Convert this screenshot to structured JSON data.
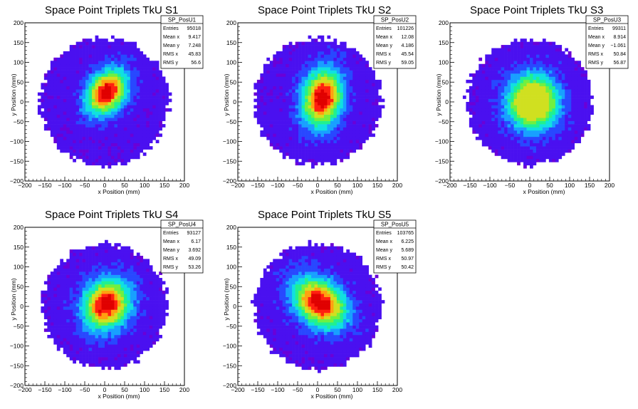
{
  "chart_data": [
    {
      "type": "heatmap",
      "title": "Space Point Triplets TkU S1",
      "xlabel": "x Position (mm)",
      "ylabel": "y Position (mm)",
      "xlim": [
        -200,
        200
      ],
      "ylim": [
        -200,
        200
      ],
      "xticks": [
        "−200",
        "−150",
        "−100",
        "−50",
        "0",
        "50",
        "100",
        "150",
        "200"
      ],
      "yticks": [
        "−200",
        "−150",
        "−100",
        "−50",
        "0",
        "50",
        "100",
        "150",
        "200"
      ],
      "stats": {
        "name": "SP_PosU1",
        "rows": [
          {
            "label": "Entries",
            "value": "95018"
          },
          {
            "label": "Mean x",
            "value": "9.417"
          },
          {
            "label": "Mean y",
            "value": "7.248"
          },
          {
            "label": "RMS x",
            "value": "45.83"
          },
          {
            "label": "RMS y",
            "value": "56.6"
          }
        ]
      },
      "distribution": {
        "radius": 162,
        "core_x": 5,
        "core_y": 25,
        "sigma_x": 30,
        "sigma_y": 42,
        "tilt_deg": -35,
        "peak": "red"
      }
    },
    {
      "type": "heatmap",
      "title": "Space Point Triplets TkU S2",
      "xlabel": "x Position (mm)",
      "ylabel": "y Position (mm)",
      "xlim": [
        -200,
        200
      ],
      "ylim": [
        -200,
        200
      ],
      "xticks": [
        "−200",
        "−150",
        "−100",
        "−50",
        "0",
        "50",
        "100",
        "150",
        "200"
      ],
      "yticks": [
        "−200",
        "−150",
        "−100",
        "−50",
        "0",
        "50",
        "100",
        "150",
        "200"
      ],
      "stats": {
        "name": "SP_PosU2",
        "rows": [
          {
            "label": "Entries",
            "value": "101226"
          },
          {
            "label": "Mean x",
            "value": "12.08"
          },
          {
            "label": "Mean y",
            "value": "4.186"
          },
          {
            "label": "RMS x",
            "value": "45.54"
          },
          {
            "label": "RMS y",
            "value": "59.05"
          }
        ]
      },
      "distribution": {
        "radius": 160,
        "core_x": 12,
        "core_y": 10,
        "sigma_x": 33,
        "sigma_y": 50,
        "tilt_deg": -10,
        "peak": "red"
      }
    },
    {
      "type": "heatmap",
      "title": "Space Point Triplets TkU S3",
      "xlabel": "x Position (mm)",
      "ylabel": "y Position (mm)",
      "xlim": [
        -200,
        200
      ],
      "ylim": [
        -200,
        200
      ],
      "xticks": [
        "−200",
        "−150",
        "−100",
        "−50",
        "0",
        "50",
        "100",
        "150",
        "200"
      ],
      "yticks": [
        "−200",
        "−150",
        "−100",
        "−50",
        "0",
        "50",
        "100",
        "150",
        "200"
      ],
      "stats": {
        "name": "SP_PosU3",
        "rows": [
          {
            "label": "Entries",
            "value": "99311"
          },
          {
            "label": "Mean x",
            "value": "8.914"
          },
          {
            "label": "Mean y",
            "value": "−1.061"
          },
          {
            "label": "RMS x",
            "value": "50.84"
          },
          {
            "label": "RMS y",
            "value": "56.87"
          }
        ]
      },
      "distribution": {
        "radius": 158,
        "core_x": 8,
        "core_y": 0,
        "sigma_x": 42,
        "sigma_y": 46,
        "tilt_deg": 0,
        "peak": "green"
      }
    },
    {
      "type": "heatmap",
      "title": "Space Point Triplets TkU S4",
      "xlabel": "x Position (mm)",
      "ylabel": "y Position (mm)",
      "xlim": [
        -200,
        200
      ],
      "ylim": [
        -200,
        200
      ],
      "xticks": [
        "−200",
        "−150",
        "−100",
        "−50",
        "0",
        "50",
        "100",
        "150",
        "200"
      ],
      "yticks": [
        "−200",
        "−150",
        "−100",
        "−50",
        "0",
        "50",
        "100",
        "150",
        "200"
      ],
      "stats": {
        "name": "SP_PosU4",
        "rows": [
          {
            "label": "Entries",
            "value": "93127"
          },
          {
            "label": "Mean x",
            "value": "6.17"
          },
          {
            "label": "Mean y",
            "value": "3.692"
          },
          {
            "label": "RMS x",
            "value": "49.09"
          },
          {
            "label": "RMS y",
            "value": "53.26"
          }
        ]
      },
      "distribution": {
        "radius": 158,
        "core_x": 5,
        "core_y": 5,
        "sigma_x": 38,
        "sigma_y": 44,
        "tilt_deg": -30,
        "peak": "red"
      }
    },
    {
      "type": "heatmap",
      "title": "Space Point Triplets TkU S5",
      "xlabel": "x Position (mm)",
      "ylabel": "y Position (mm)",
      "xlim": [
        -200,
        200
      ],
      "ylim": [
        -200,
        200
      ],
      "xticks": [
        "−200",
        "−150",
        "−100",
        "−50",
        "0",
        "50",
        "100",
        "150",
        "200"
      ],
      "yticks": [
        "−200",
        "−150",
        "−100",
        "−50",
        "0",
        "50",
        "100",
        "150",
        "200"
      ],
      "stats": {
        "name": "SP_PosU5",
        "rows": [
          {
            "label": "Entries",
            "value": "103765"
          },
          {
            "label": "Mean x",
            "value": "6.225"
          },
          {
            "label": "Mean y",
            "value": "5.689"
          },
          {
            "label": "RMS x",
            "value": "50.97"
          },
          {
            "label": "RMS y",
            "value": "50.42"
          }
        ]
      },
      "distribution": {
        "radius": 160,
        "core_x": 5,
        "core_y": 10,
        "sigma_x": 50,
        "sigma_y": 36,
        "tilt_deg": -40,
        "peak": "red"
      }
    }
  ],
  "colormap": [
    "#6a00d8",
    "#4a10f0",
    "#2848ff",
    "#18a0ff",
    "#10e0e0",
    "#20f090",
    "#70f040",
    "#d0e020",
    "#ffa010",
    "#ff2010",
    "#e00000"
  ]
}
